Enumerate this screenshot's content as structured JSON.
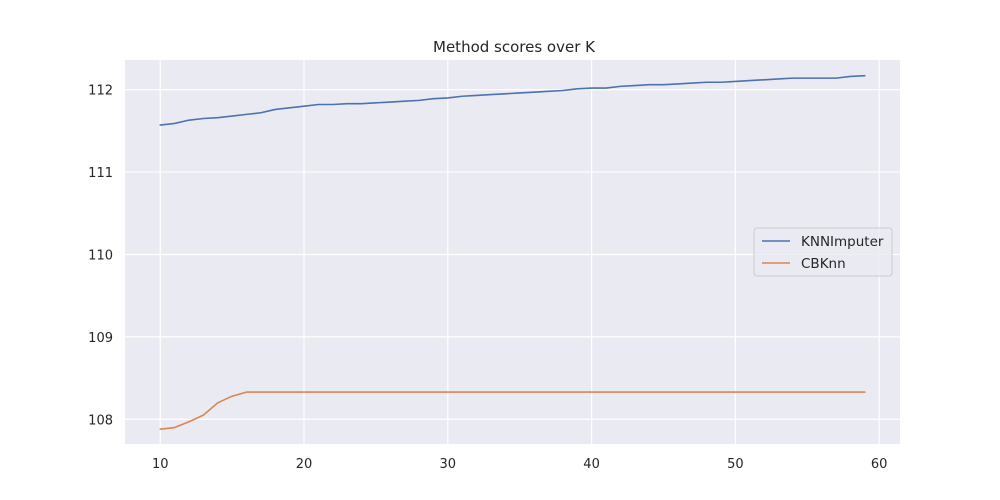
{
  "chart_data": {
    "type": "line",
    "title": "Method scores over K",
    "xlabel": "",
    "ylabel": "",
    "xlim": [
      7.55,
      61.45
    ],
    "ylim": [
      107.7,
      112.36
    ],
    "xticks": [
      10,
      20,
      30,
      40,
      50,
      60
    ],
    "yticks": [
      108,
      109,
      110,
      111,
      112
    ],
    "grid": true,
    "legend_position": "center-right",
    "x": [
      10,
      11,
      12,
      13,
      14,
      15,
      16,
      17,
      18,
      19,
      20,
      21,
      22,
      23,
      24,
      25,
      26,
      27,
      28,
      29,
      30,
      31,
      32,
      33,
      34,
      35,
      36,
      37,
      38,
      39,
      40,
      41,
      42,
      43,
      44,
      45,
      46,
      47,
      48,
      49,
      50,
      51,
      52,
      53,
      54,
      55,
      56,
      57,
      58,
      59
    ],
    "series": [
      {
        "name": "KNNImputer",
        "color": "#4c72b0",
        "values": [
          111.57,
          111.59,
          111.63,
          111.65,
          111.66,
          111.68,
          111.7,
          111.72,
          111.76,
          111.78,
          111.8,
          111.82,
          111.82,
          111.83,
          111.83,
          111.84,
          111.85,
          111.86,
          111.87,
          111.89,
          111.9,
          111.92,
          111.93,
          111.94,
          111.95,
          111.96,
          111.97,
          111.98,
          111.99,
          112.01,
          112.02,
          112.02,
          112.04,
          112.05,
          112.06,
          112.06,
          112.07,
          112.08,
          112.09,
          112.09,
          112.1,
          112.11,
          112.12,
          112.13,
          112.14,
          112.14,
          112.14,
          112.14,
          112.16,
          112.17
        ]
      },
      {
        "name": "CBKnn",
        "color": "#dd8452",
        "values": [
          107.88,
          107.9,
          107.97,
          108.05,
          108.2,
          108.28,
          108.33,
          108.33,
          108.33,
          108.33,
          108.33,
          108.33,
          108.33,
          108.33,
          108.33,
          108.33,
          108.33,
          108.33,
          108.33,
          108.33,
          108.33,
          108.33,
          108.33,
          108.33,
          108.33,
          108.33,
          108.33,
          108.33,
          108.33,
          108.33,
          108.33,
          108.33,
          108.33,
          108.33,
          108.33,
          108.33,
          108.33,
          108.33,
          108.33,
          108.33,
          108.33,
          108.33,
          108.33,
          108.33,
          108.33,
          108.33,
          108.33,
          108.33,
          108.33,
          108.33
        ]
      }
    ]
  }
}
